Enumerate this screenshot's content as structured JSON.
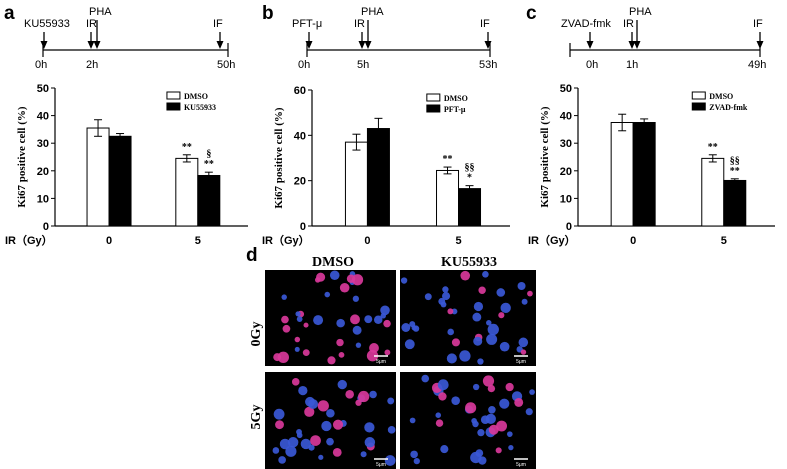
{
  "colors": {
    "control_bar": "#ffffff",
    "treated_bar": "#000000",
    "micrograph_bg": "#000000"
  },
  "timelines": [
    {
      "panel": "a",
      "inhibitor": "KU55933",
      "ir": "IR",
      "pha": "PHA",
      "if": "IF",
      "t0": "0h",
      "t1": "2h",
      "t2": "50h"
    },
    {
      "panel": "b",
      "inhibitor": "PFT-μ",
      "ir": "IR",
      "pha": "PHA",
      "if": "IF",
      "t0": "0h",
      "t1": "5h",
      "t2": "53h"
    },
    {
      "panel": "c",
      "inhibitor": "ZVAD-fmk",
      "ir": "IR",
      "pha": "PHA",
      "if": "IF",
      "t0": "0h",
      "t1": "1h",
      "t2": "49h"
    }
  ],
  "chart_data": [
    {
      "panel": "a",
      "type": "bar",
      "ylabel": "Ki67 positive cell (%)",
      "xlabel": "IR（Gy）",
      "categories": [
        "0",
        "5"
      ],
      "ylim": [
        0,
        50
      ],
      "yticks": [
        0,
        10,
        20,
        30,
        40,
        50
      ],
      "legend_position": "top-right",
      "series": [
        {
          "name": "DMSO",
          "values": [
            35.5,
            24.5
          ],
          "errors": [
            3,
            1.3
          ]
        },
        {
          "name": "KU55933",
          "values": [
            32.5,
            18.3
          ],
          "errors": [
            1,
            1.2
          ]
        }
      ],
      "annotations": [
        {
          "category": "5",
          "series": 0,
          "text": "**"
        },
        {
          "category": "5",
          "series": 1,
          "text": "§\n**"
        }
      ]
    },
    {
      "panel": "b",
      "type": "bar",
      "ylabel": "Ki67 positive cell (%)",
      "xlabel": "IR（Gy）",
      "categories": [
        "0",
        "5"
      ],
      "ylim": [
        0,
        60
      ],
      "yticks": [
        0,
        20,
        40,
        60
      ],
      "legend_position": "top-right",
      "series": [
        {
          "name": "DMSO",
          "values": [
            37,
            24.5
          ],
          "errors": [
            3.5,
            1.5
          ]
        },
        {
          "name": "PFT-μ",
          "values": [
            43,
            16.5
          ],
          "errors": [
            4.5,
            1.3
          ]
        }
      ],
      "annotations": [
        {
          "category": "5",
          "series": 0,
          "text": "**"
        },
        {
          "category": "5",
          "series": 1,
          "text": "§§\n*"
        }
      ]
    },
    {
      "panel": "c",
      "type": "bar",
      "ylabel": "Ki67 positive cell (%)",
      "xlabel": "IR（Gy）",
      "categories": [
        "0",
        "5"
      ],
      "ylim": [
        0,
        50
      ],
      "yticks": [
        0,
        10,
        20,
        30,
        40,
        50
      ],
      "legend_position": "top-right",
      "series": [
        {
          "name": "DMSO",
          "values": [
            37.5,
            24.5
          ],
          "errors": [
            3,
            1.3
          ]
        },
        {
          "name": "ZVAD-fmk",
          "values": [
            37.5,
            16.5
          ],
          "errors": [
            1.3,
            0.6
          ]
        }
      ],
      "annotations": [
        {
          "category": "5",
          "series": 0,
          "text": "**"
        },
        {
          "category": "5",
          "series": 1,
          "text": "§§\n**"
        }
      ]
    }
  ],
  "micrographs": {
    "panel": "d",
    "columns": [
      "DMSO",
      "KU55933"
    ],
    "rows": [
      "0Gy",
      "5Gy"
    ],
    "scale_bar": "5μm"
  }
}
